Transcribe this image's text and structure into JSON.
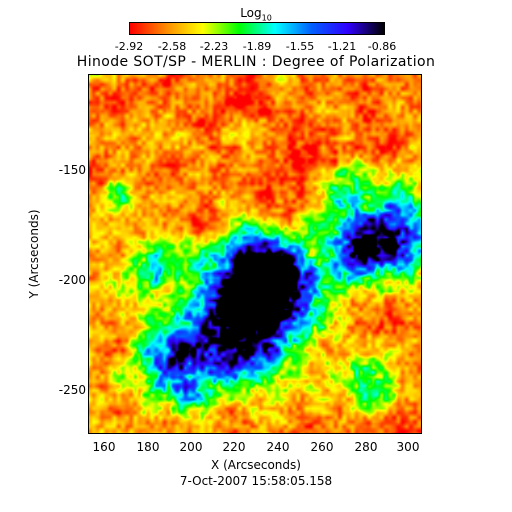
{
  "colorbar": {
    "label": "Log",
    "label_sub": "10",
    "colors": [
      "#ff0000",
      "#ff8c00",
      "#ffff00",
      "#00ff00",
      "#00ffff",
      "#0060ff",
      "#3000ff",
      "#000000"
    ],
    "ticks": [
      "-2.92",
      "-2.58",
      "-2.23",
      "-1.89",
      "-1.55",
      "-1.21",
      "-0.86"
    ]
  },
  "title": "Hinode SOT/SP - MERLIN : Degree of Polarization",
  "y_axis": {
    "label": "Y (Arcseconds)",
    "ticks": [
      "-150",
      "-200",
      "-250"
    ]
  },
  "x_axis": {
    "label": "X (Arcseconds)",
    "ticks": [
      "160",
      "180",
      "200",
      "220",
      "240",
      "260",
      "280",
      "300"
    ]
  },
  "timestamp": "7-Oct-2007 15:58:05.158"
}
